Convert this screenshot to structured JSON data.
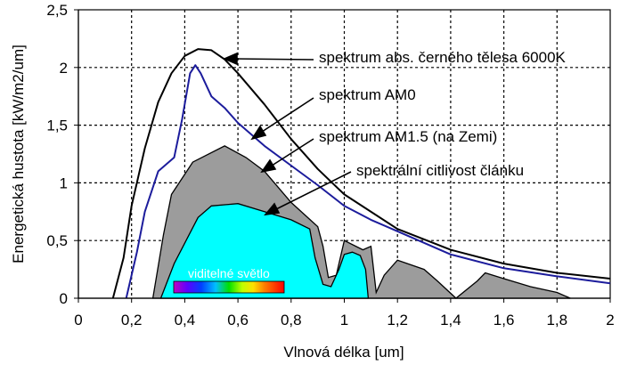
{
  "chart_data": {
    "type": "line",
    "title": "",
    "xlabel": "Vlnová délka [um]",
    "ylabel": "Energetická hustota [kW/m2/um]",
    "xlim": [
      0,
      2
    ],
    "ylim": [
      0,
      2.5
    ],
    "grid": true,
    "x_ticks": [
      0,
      0.2,
      0.4,
      0.6,
      0.8,
      1.0,
      1.2,
      1.4,
      1.6,
      1.8,
      2.0
    ],
    "x_tick_labels": [
      "0",
      "0,2",
      "0,4",
      "0,6",
      "0,8",
      "1",
      "1,2",
      "1,4",
      "1,6",
      "1,8",
      "2"
    ],
    "y_ticks": [
      0,
      0.5,
      1.0,
      1.5,
      2.0,
      2.5
    ],
    "y_tick_labels": [
      "0",
      "0,5",
      "1",
      "1,5",
      "2",
      "2,5"
    ],
    "series": [
      {
        "name": "spektrum abs. černého tělesa 6000K",
        "kind": "line",
        "color": "#000000",
        "x": [
          0.13,
          0.17,
          0.2,
          0.25,
          0.3,
          0.35,
          0.4,
          0.45,
          0.5,
          0.55,
          0.6,
          0.7,
          0.8,
          0.9,
          1.0,
          1.2,
          1.4,
          1.6,
          1.8,
          2.0
        ],
        "y": [
          0.0,
          0.35,
          0.8,
          1.3,
          1.7,
          1.95,
          2.1,
          2.16,
          2.15,
          2.07,
          1.95,
          1.68,
          1.38,
          1.12,
          0.9,
          0.6,
          0.42,
          0.3,
          0.22,
          0.17
        ]
      },
      {
        "name": "spektrum AM0",
        "kind": "line",
        "color": "#1c1c9c",
        "x": [
          0.18,
          0.22,
          0.25,
          0.3,
          0.36,
          0.39,
          0.42,
          0.44,
          0.46,
          0.5,
          0.55,
          0.6,
          0.7,
          0.8,
          0.9,
          1.0,
          1.1,
          1.2,
          1.4,
          1.6,
          1.8,
          2.0
        ],
        "y": [
          0.0,
          0.4,
          0.75,
          1.1,
          1.22,
          1.55,
          1.95,
          2.02,
          1.95,
          1.75,
          1.65,
          1.52,
          1.32,
          1.15,
          0.98,
          0.8,
          0.68,
          0.58,
          0.38,
          0.26,
          0.19,
          0.13
        ]
      },
      {
        "name": "spektrum AM1.5 (na Zemi)",
        "kind": "area",
        "color": "#9c9c9c",
        "x": [
          0.28,
          0.32,
          0.35,
          0.43,
          0.55,
          0.63,
          0.7,
          0.8,
          0.9,
          0.92,
          0.94,
          0.97,
          1.0,
          1.07,
          1.1,
          1.12,
          1.15,
          1.2,
          1.3,
          1.35,
          1.42,
          1.5,
          1.53,
          1.6,
          1.7,
          1.8,
          1.85
        ],
        "y": [
          0.0,
          0.55,
          0.9,
          1.18,
          1.32,
          1.22,
          1.1,
          0.83,
          0.62,
          0.45,
          0.18,
          0.2,
          0.5,
          0.42,
          0.45,
          0.05,
          0.2,
          0.33,
          0.25,
          0.15,
          0.0,
          0.15,
          0.22,
          0.17,
          0.1,
          0.05,
          0.0
        ]
      },
      {
        "name": "spektrální citlivost článku",
        "kind": "area",
        "color": "#00ffff",
        "x": [
          0.31,
          0.36,
          0.45,
          0.5,
          0.6,
          0.7,
          0.8,
          0.87,
          0.89,
          0.92,
          0.95,
          0.98,
          1.0,
          1.03,
          1.06,
          1.08,
          1.09
        ],
        "y": [
          0.0,
          0.3,
          0.7,
          0.8,
          0.82,
          0.75,
          0.68,
          0.6,
          0.35,
          0.12,
          0.1,
          0.25,
          0.38,
          0.4,
          0.37,
          0.25,
          0.0
        ]
      }
    ],
    "annotations": [
      "spektrum abs. černého tělesa 6000K",
      "spektrum AM0",
      "spektrum AM1.5 (na Zemi)",
      "spektrální citlivost článku",
      "viditelné světlo"
    ],
    "visible_band": {
      "from": 0.36,
      "to": 0.78
    }
  },
  "colors": {
    "grid": "#000000",
    "plot_bg": "#ffffff",
    "cell_fill": "#00ffff",
    "am15_fill": "#9c9c9c",
    "am0_line": "#1c1c9c",
    "blackbody_line": "#000000"
  }
}
